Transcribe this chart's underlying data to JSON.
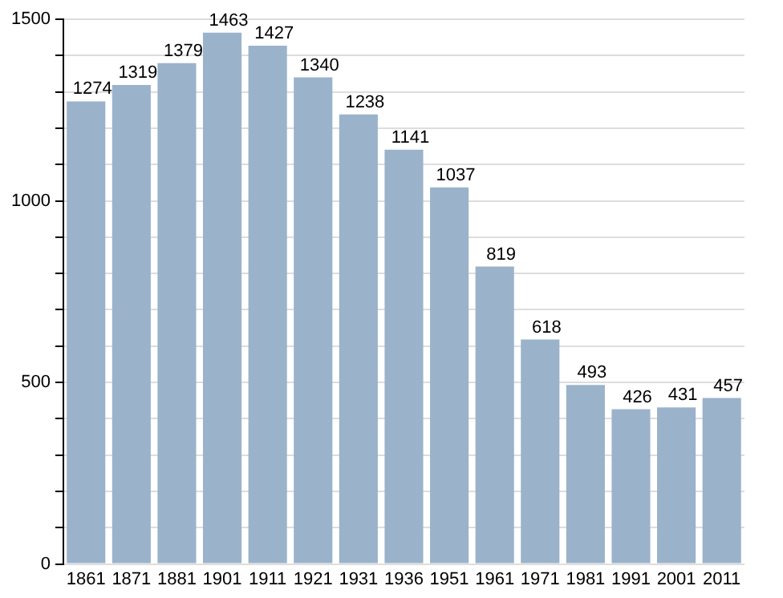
{
  "chart_data": {
    "type": "bar",
    "categories": [
      "1861",
      "1871",
      "1881",
      "1901",
      "1911",
      "1921",
      "1931",
      "1936",
      "1951",
      "1961",
      "1971",
      "1981",
      "1991",
      "2001",
      "2011"
    ],
    "values": [
      1274,
      1319,
      1379,
      1463,
      1427,
      1340,
      1238,
      1141,
      1037,
      819,
      618,
      493,
      426,
      431,
      457
    ],
    "color": "#9bb2cb",
    "ylim": [
      0,
      1500
    ],
    "yticks": [
      0,
      {
        "value": 100,
        "label": null
      },
      {
        "value": 200,
        "label": null
      },
      {
        "value": 300,
        "label": null
      },
      {
        "value": 400,
        "label": null
      },
      500,
      {
        "value": 600,
        "label": null
      },
      {
        "value": 700,
        "label": null
      },
      {
        "value": 800,
        "label": null
      },
      {
        "value": 900,
        "label": null
      },
      1000,
      {
        "value": 1100,
        "label": null
      },
      {
        "value": 1200,
        "label": null
      },
      {
        "value": 1300,
        "label": null
      },
      {
        "value": 1400,
        "label": null
      },
      1500
    ],
    "grid": "y",
    "data_labels": true
  }
}
